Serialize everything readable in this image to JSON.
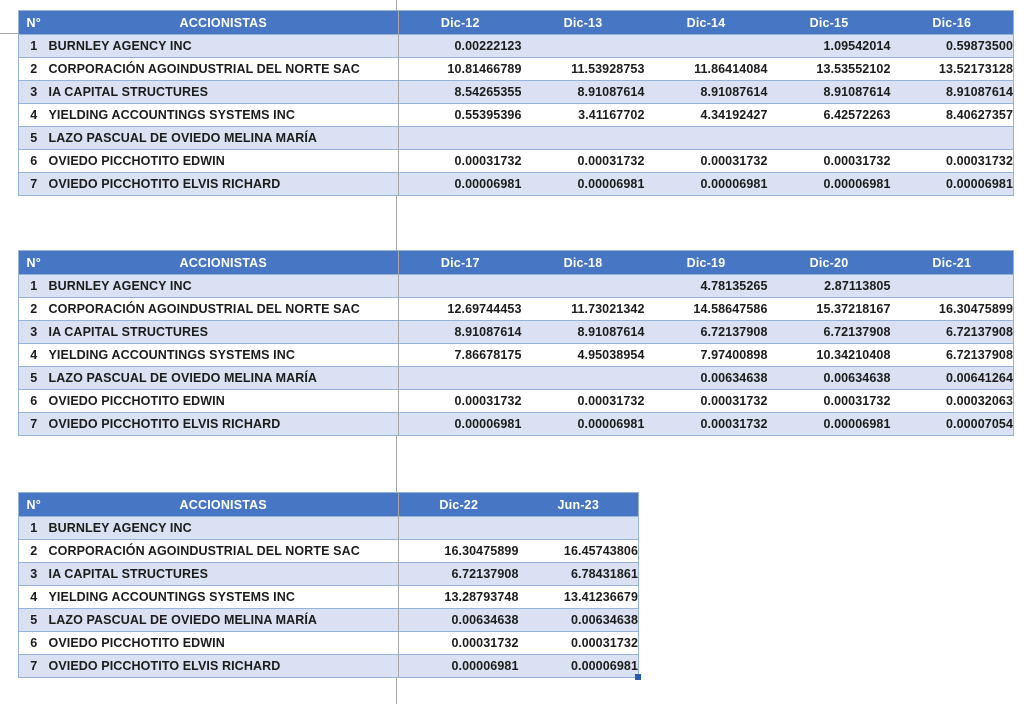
{
  "colors": {
    "header_bg": "#4777C4",
    "band_row_bg": "#D9E1F2",
    "row_line": "#95B3D7",
    "gridline": "#A6A6A6",
    "text": "#1C1C1C",
    "header_text": "#FFFFFF",
    "fill_handle": "#2A5CAA"
  },
  "tables": [
    {
      "num_column": "N°",
      "title_column": "ACCIONISTAS",
      "period_columns": [
        "Dic-12",
        "Dic-13",
        "Dic-14",
        "Dic-15",
        "Dic-16"
      ],
      "rows": [
        {
          "num": "1",
          "name": "BURNLEY AGENCY INC",
          "values": [
            "0.00222123",
            "",
            "",
            "1.09542014",
            "0.59873500"
          ]
        },
        {
          "num": "2",
          "name": "CORPORACIÓN AGOINDUSTRIAL DEL NORTE SAC",
          "values": [
            "10.81466789",
            "11.53928753",
            "11.86414084",
            "13.53552102",
            "13.52173128"
          ]
        },
        {
          "num": "3",
          "name": "IA CAPITAL STRUCTURES",
          "values": [
            "8.54265355",
            "8.91087614",
            "8.91087614",
            "8.91087614",
            "8.91087614"
          ]
        },
        {
          "num": "4",
          "name": "YIELDING ACCOUNTINGS SYSTEMS INC",
          "values": [
            "0.55395396",
            "3.41167702",
            "4.34192427",
            "6.42572263",
            "8.40627357"
          ]
        },
        {
          "num": "5",
          "name": "LAZO PASCUAL DE OVIEDO MELINA MARÍA",
          "values": [
            "",
            "",
            "",
            "",
            ""
          ]
        },
        {
          "num": "6",
          "name": "OVIEDO PICCHOTITO EDWIN",
          "values": [
            "0.00031732",
            "0.00031732",
            "0.00031732",
            "0.00031732",
            "0.00031732"
          ]
        },
        {
          "num": "7",
          "name": "OVIEDO PICCHOTITO ELVIS RICHARD",
          "values": [
            "0.00006981",
            "0.00006981",
            "0.00006981",
            "0.00006981",
            "0.00006981"
          ]
        }
      ]
    },
    {
      "num_column": "N°",
      "title_column": "ACCIONISTAS",
      "period_columns": [
        "Dic-17",
        "Dic-18",
        "Dic-19",
        "Dic-20",
        "Dic-21"
      ],
      "rows": [
        {
          "num": "1",
          "name": "BURNLEY AGENCY INC",
          "values": [
            "",
            "",
            "4.78135265",
            "2.87113805",
            ""
          ]
        },
        {
          "num": "2",
          "name": "CORPORACIÓN AGOINDUSTRIAL DEL NORTE SAC",
          "values": [
            "12.69744453",
            "11.73021342",
            "14.58647586",
            "15.37218167",
            "16.30475899"
          ]
        },
        {
          "num": "3",
          "name": "IA CAPITAL STRUCTURES",
          "values": [
            "8.91087614",
            "8.91087614",
            "6.72137908",
            "6.72137908",
            "6.72137908"
          ]
        },
        {
          "num": "4",
          "name": "YIELDING ACCOUNTINGS SYSTEMS INC",
          "values": [
            "7.86678175",
            "4.95038954",
            "7.97400898",
            "10.34210408",
            "6.72137908"
          ]
        },
        {
          "num": "5",
          "name": "LAZO PASCUAL DE OVIEDO MELINA MARÍA",
          "values": [
            "",
            "",
            "0.00634638",
            "0.00634638",
            "0.00641264"
          ]
        },
        {
          "num": "6",
          "name": "OVIEDO PICCHOTITO EDWIN",
          "values": [
            "0.00031732",
            "0.00031732",
            "0.00031732",
            "0.00031732",
            "0.00032063"
          ]
        },
        {
          "num": "7",
          "name": "OVIEDO PICCHOTITO ELVIS RICHARD",
          "values": [
            "0.00006981",
            "0.00006981",
            "0.00031732",
            "0.00006981",
            "0.00007054"
          ]
        }
      ]
    },
    {
      "num_column": "N°",
      "title_column": "ACCIONISTAS",
      "period_columns": [
        "Dic-22",
        "Jun-23"
      ],
      "rows": [
        {
          "num": "1",
          "name": "BURNLEY AGENCY INC",
          "values": [
            "",
            ""
          ]
        },
        {
          "num": "2",
          "name": "CORPORACIÓN AGOINDUSTRIAL DEL NORTE SAC",
          "values": [
            "16.30475899",
            "16.45743806"
          ]
        },
        {
          "num": "3",
          "name": "IA CAPITAL STRUCTURES",
          "values": [
            "6.72137908",
            "6.78431861"
          ]
        },
        {
          "num": "4",
          "name": "YIELDING ACCOUNTINGS SYSTEMS INC",
          "values": [
            "13.28793748",
            "13.41236679"
          ]
        },
        {
          "num": "5",
          "name": "LAZO PASCUAL DE OVIEDO MELINA MARÍA",
          "values": [
            "0.00634638",
            "0.00634638"
          ]
        },
        {
          "num": "6",
          "name": "OVIEDO PICCHOTITO EDWIN",
          "values": [
            "0.00031732",
            "0.00031732"
          ]
        },
        {
          "num": "7",
          "name": "OVIEDO PICCHOTITO ELVIS RICHARD",
          "values": [
            "0.00006981",
            "0.00006981"
          ]
        }
      ]
    }
  ]
}
